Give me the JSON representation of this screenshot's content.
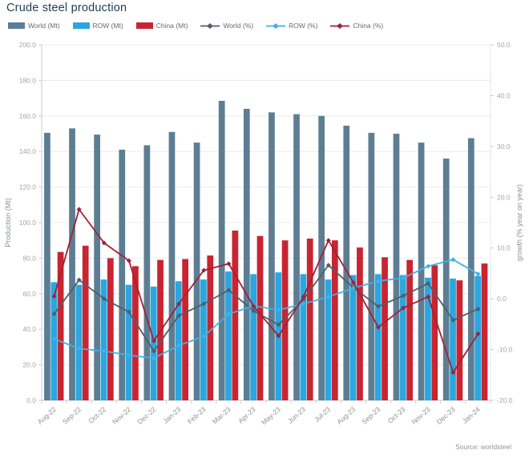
{
  "title": "Crude steel production",
  "source": "Source: worldsteel",
  "chart_data": {
    "type": "bar+line combo",
    "title": "Crude steel production",
    "categories": [
      "Aug-22",
      "Sep-22",
      "Oct-22",
      "Nov-22",
      "Dec-22",
      "Jan-23",
      "Feb-23",
      "Mar-23",
      "Apr-23",
      "May-23",
      "Jun-23",
      "Jul-23",
      "Aug-23",
      "Sep-23",
      "Oct-23",
      "Nov-23",
      "Dec-23",
      "Jan-24"
    ],
    "bar_series": [
      {
        "name": "World (Mt)",
        "axis": "left",
        "color": "#5d7d93",
        "values": [
          150.5,
          153.0,
          149.5,
          141.0,
          143.5,
          151.0,
          145.0,
          168.5,
          164.0,
          162.0,
          161.0,
          160.0,
          154.5,
          150.5,
          150.0,
          145.0,
          136.0,
          147.5
        ]
      },
      {
        "name": "ROW (Mt)",
        "axis": "left",
        "color": "#2aa7df",
        "values": [
          66.5,
          65.0,
          68.0,
          65.0,
          64.0,
          67.0,
          68.0,
          72.5,
          71.0,
          72.0,
          71.0,
          68.0,
          70.5,
          71.0,
          70.5,
          69.0,
          68.5,
          70.0
        ]
      },
      {
        "name": "China (Mt)",
        "axis": "left",
        "color": "#c92431",
        "values": [
          83.5,
          87.0,
          80.0,
          75.5,
          79.0,
          79.5,
          81.5,
          95.5,
          92.5,
          90.0,
          91.0,
          90.0,
          86.0,
          80.5,
          79.0,
          76.0,
          67.5,
          77.0
        ]
      }
    ],
    "line_series": [
      {
        "name": "World (%)",
        "axis": "right",
        "color": "#505e6b",
        "values": [
          -3.0,
          3.7,
          0.0,
          -2.6,
          -10.3,
          -3.3,
          -1.0,
          1.7,
          -2.4,
          -5.1,
          -0.1,
          6.6,
          2.2,
          -1.5,
          0.6,
          3.0,
          -4.2,
          -2.0
        ]
      },
      {
        "name": "ROW (%)",
        "axis": "right",
        "color": "#41b2e2",
        "values": [
          -7.9,
          -9.8,
          -10.3,
          -11.1,
          -11.7,
          -9.2,
          -7.4,
          -3.0,
          -1.4,
          -2.2,
          -1.0,
          0.4,
          2.1,
          3.5,
          4.1,
          6.4,
          7.7,
          4.9
        ]
      },
      {
        "name": "China (%)",
        "axis": "right",
        "color": "#a22036",
        "values": [
          0.5,
          17.6,
          11.0,
          7.5,
          -8.3,
          -1.0,
          5.6,
          6.9,
          -1.5,
          -7.3,
          0.4,
          11.5,
          3.2,
          -5.6,
          -1.8,
          0.4,
          -14.5,
          -6.9
        ]
      }
    ],
    "y_left": {
      "label": "Production (Mt)",
      "min": 0,
      "max": 200,
      "step": 20,
      "tick_format": "1dp"
    },
    "y_right": {
      "label": "growth (% year on year)",
      "min": -20,
      "max": 50,
      "step": 10,
      "tick_format": "1dp"
    },
    "grid": true,
    "legend_position": "top",
    "source": "Source: worldsteel"
  }
}
